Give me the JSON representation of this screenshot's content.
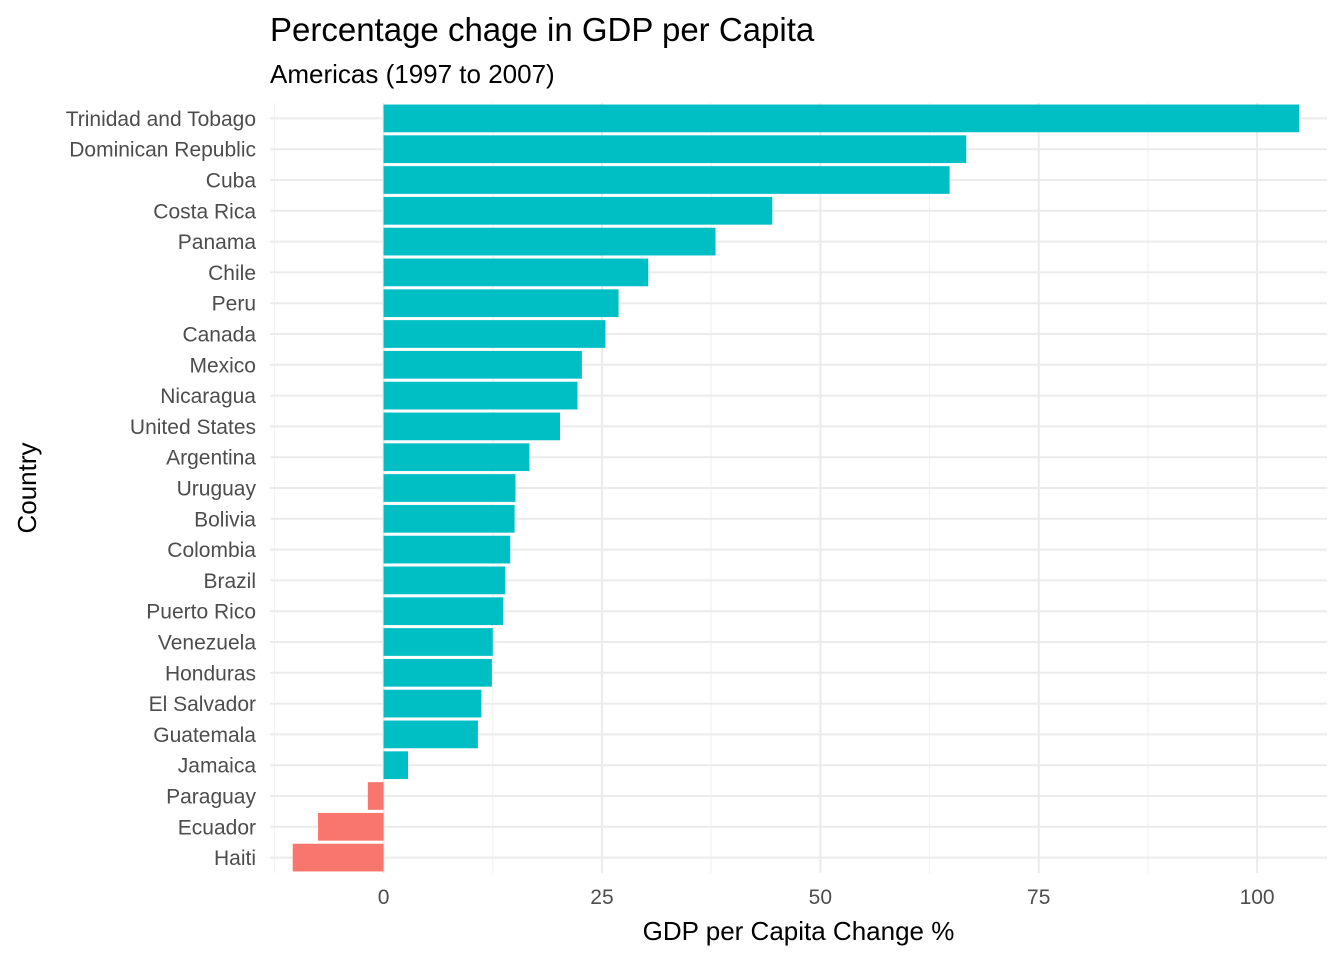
{
  "chart_data": {
    "type": "bar",
    "orientation": "horizontal",
    "title": "Percentage chage in GDP per Capita",
    "subtitle": "Americas (1997 to 2007)",
    "xlabel": "GDP per Capita Change %",
    "ylabel": "Country",
    "xlim": [
      -13,
      108
    ],
    "xticks": [
      0,
      25,
      50,
      75,
      100
    ],
    "grid": true,
    "legend": "none",
    "colors": {
      "positive": "#00BFC4",
      "negative": "#F8766D"
    },
    "categories": [
      "Trinidad and Tobago",
      "Dominican Republic",
      "Cuba",
      "Costa Rica",
      "Panama",
      "Chile",
      "Peru",
      "Canada",
      "Mexico",
      "Nicaragua",
      "United States",
      "Argentina",
      "Uruguay",
      "Bolivia",
      "Colombia",
      "Brazil",
      "Puerto Rico",
      "Venezuela",
      "Honduras",
      "El Salvador",
      "Guatemala",
      "Jamaica",
      "Paraguay",
      "Ecuador",
      "Haiti"
    ],
    "values": [
      104.8,
      66.7,
      64.8,
      44.5,
      38.0,
      30.3,
      26.9,
      25.4,
      22.7,
      22.2,
      20.2,
      16.7,
      15.1,
      15.0,
      14.5,
      13.9,
      13.7,
      12.5,
      12.4,
      11.2,
      10.8,
      2.8,
      -1.8,
      -7.5,
      -10.4
    ]
  }
}
